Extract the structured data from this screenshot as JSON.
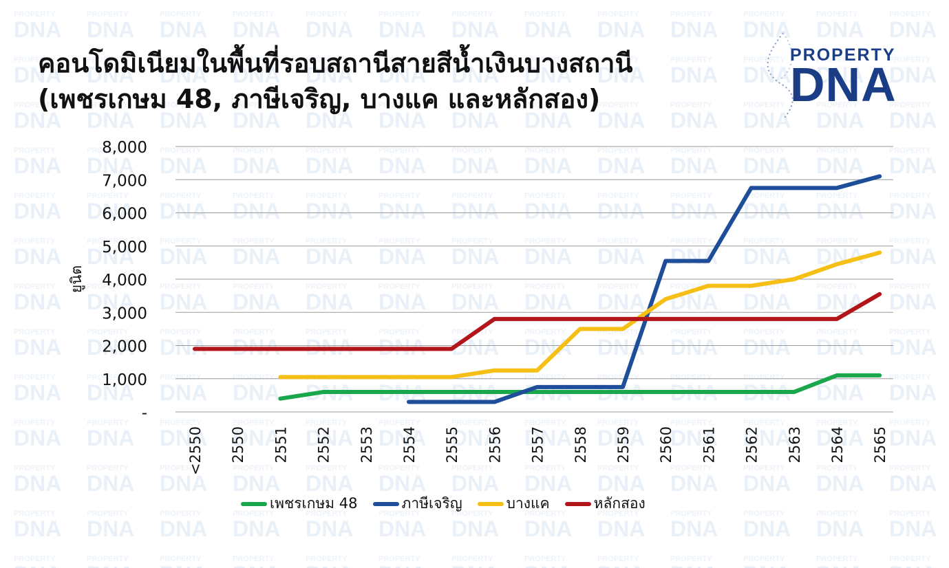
{
  "title_line1": "คอนโดมิเนียมในพื้นที่รอบสถานีสายสีน้ำเงินบางสถานี",
  "title_line2": "(เพชรเกษม 48, ภาษีเจริญ, บางแค และหลักสอง)",
  "brand": {
    "top": "PROPERTY",
    "main": "DNA",
    "color": "#1a3d86"
  },
  "chart_data": {
    "type": "line",
    "ylabel": "ยูนิต",
    "xlabel": "",
    "ylim": [
      0,
      8000
    ],
    "yticks": [
      {
        "value": 0,
        "label": "-"
      },
      {
        "value": 1000,
        "label": "1,000"
      },
      {
        "value": 2000,
        "label": "2,000"
      },
      {
        "value": 3000,
        "label": "3,000"
      },
      {
        "value": 4000,
        "label": "4,000"
      },
      {
        "value": 5000,
        "label": "5,000"
      },
      {
        "value": 6000,
        "label": "6,000"
      },
      {
        "value": 7000,
        "label": "7,000"
      },
      {
        "value": 8000,
        "label": "8,000"
      }
    ],
    "grid": true,
    "legend_position": "bottom",
    "categories": [
      "<2550",
      "2550",
      "2551",
      "2552",
      "2553",
      "2554",
      "2555",
      "2556",
      "2557",
      "2558",
      "2559",
      "2560",
      "2561",
      "2562",
      "2563",
      "2564",
      "2565"
    ],
    "series": [
      {
        "name": "เพชรเกษม 48",
        "color": "#1aa64b",
        "values": [
          null,
          null,
          400,
          600,
          600,
          600,
          600,
          600,
          600,
          600,
          600,
          600,
          600,
          600,
          600,
          1100,
          1100
        ]
      },
      {
        "name": "ภาษีเจริญ",
        "color": "#1e4d9a",
        "values": [
          null,
          null,
          null,
          null,
          null,
          300,
          300,
          300,
          750,
          750,
          750,
          4550,
          4550,
          6750,
          6750,
          6750,
          7100
        ]
      },
      {
        "name": "บางแค",
        "color": "#f5bf16",
        "values": [
          null,
          null,
          1050,
          1050,
          1050,
          1050,
          1050,
          1250,
          1250,
          2500,
          2500,
          3400,
          3800,
          3800,
          4000,
          4450,
          4800
        ]
      },
      {
        "name": "หลักสอง",
        "color": "#b3161a",
        "values": [
          1900,
          1900,
          1900,
          1900,
          1900,
          1900,
          1900,
          2800,
          2800,
          2800,
          2800,
          2800,
          2800,
          2800,
          2800,
          2800,
          3550
        ]
      }
    ]
  }
}
